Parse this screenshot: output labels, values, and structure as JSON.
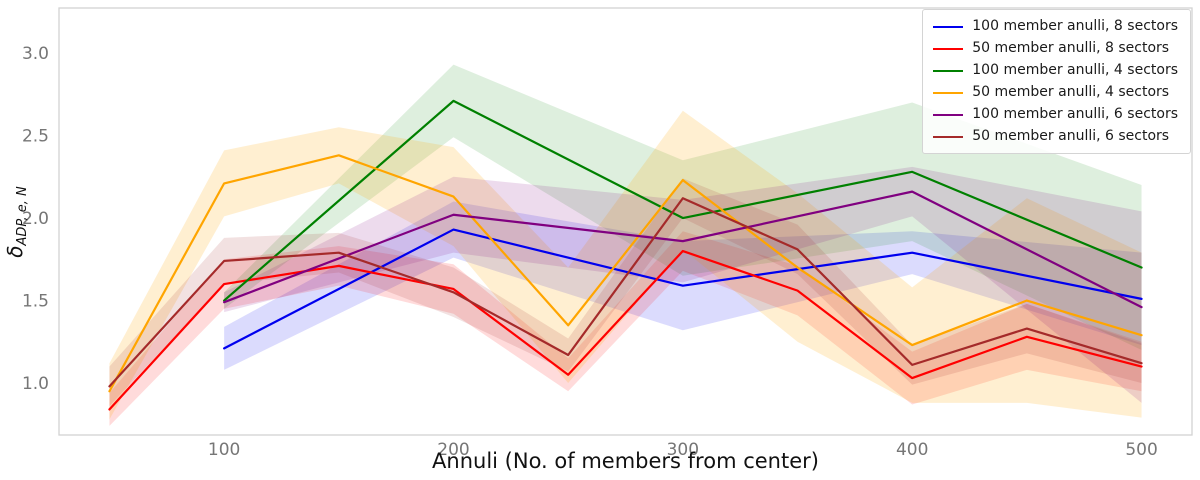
{
  "colors": {
    "spine": "#d3d3d3",
    "tick_label": "#767676",
    "axis_label": "#111111",
    "legend_border": "#d4d4d4",
    "background": "#ffffff"
  },
  "chart_data": {
    "type": "line",
    "title": "",
    "xlabel": "Annuli (No. of members from center)",
    "ylabel": "δ_ADP,e,N",
    "ylabel_symbol": "δ",
    "ylabel_subscript": "ADP, e, N",
    "xlim": [
      28,
      522
    ],
    "ylim": [
      0.685,
      3.273
    ],
    "xticks": [
      100,
      200,
      300,
      400,
      500
    ],
    "yticks": [
      1.0,
      1.5,
      2.0,
      2.5,
      3.0
    ],
    "grid": false,
    "legend_position": "upper right",
    "series": [
      {
        "name": "100 member anulli, 8 sectors",
        "color": "#0000ee",
        "band_alpha": 0.14,
        "x": [
          100,
          200,
          300,
          400,
          500
        ],
        "y": [
          1.21,
          1.93,
          1.59,
          1.79,
          1.51
        ],
        "band": [
          0.13,
          0.17,
          0.27,
          0.13,
          0.28
        ]
      },
      {
        "name": "50 member anulli, 8 sectors",
        "color": "#ff0000",
        "band_alpha": 0.14,
        "x": [
          50,
          100,
          150,
          200,
          250,
          300,
          350,
          400,
          450,
          500
        ],
        "y": [
          0.84,
          1.6,
          1.71,
          1.57,
          1.05,
          1.8,
          1.56,
          1.03,
          1.28,
          1.1
        ],
        "band": [
          0.1,
          0.15,
          0.12,
          0.15,
          0.1,
          0.12,
          0.15,
          0.16,
          0.2,
          0.15
        ]
      },
      {
        "name": "100 member anulli, 4 sectors",
        "color": "#008000",
        "band_alpha": 0.13,
        "x": [
          100,
          200,
          300,
          400,
          500
        ],
        "y": [
          1.5,
          2.71,
          2.0,
          2.28,
          1.7
        ],
        "band": [
          0.05,
          0.22,
          0.35,
          0.42,
          0.5
        ]
      },
      {
        "name": "50 member anulli, 4 sectors",
        "color": "#ffa500",
        "band_alpha": 0.18,
        "x": [
          50,
          100,
          150,
          200,
          250,
          300,
          350,
          400,
          450,
          500
        ],
        "y": [
          0.95,
          2.21,
          2.38,
          2.13,
          1.35,
          2.23,
          1.7,
          1.23,
          1.5,
          1.29
        ],
        "band": [
          0.17,
          0.2,
          0.17,
          0.3,
          0.35,
          0.42,
          0.45,
          0.35,
          0.62,
          0.5
        ]
      },
      {
        "name": "100 member anulli, 6 sectors",
        "color": "#800080",
        "band_alpha": 0.14,
        "x": [
          100,
          200,
          300,
          400,
          500
        ],
        "y": [
          1.49,
          2.02,
          1.86,
          2.16,
          1.46
        ],
        "band": [
          0.06,
          0.23,
          0.25,
          0.15,
          0.58
        ]
      },
      {
        "name": "50 member anulli, 6 sectors",
        "color": "#a52a2a",
        "band_alpha": 0.14,
        "x": [
          50,
          100,
          150,
          200,
          250,
          300,
          350,
          400,
          450,
          500
        ],
        "y": [
          0.98,
          1.74,
          1.79,
          1.55,
          1.17,
          2.12,
          1.81,
          1.11,
          1.33,
          1.12
        ],
        "band": [
          0.12,
          0.14,
          0.12,
          0.15,
          0.1,
          0.12,
          0.15,
          0.12,
          0.15,
          0.12
        ]
      }
    ]
  }
}
